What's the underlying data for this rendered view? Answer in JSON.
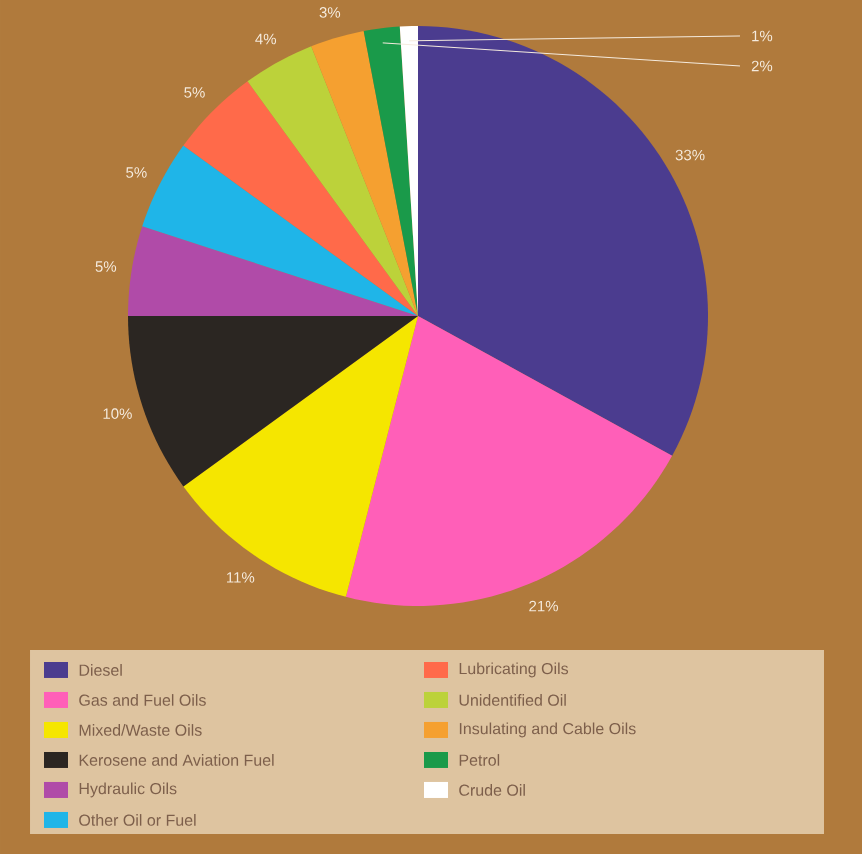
{
  "chart_data": {
    "type": "pie",
    "legend": "bottom",
    "data_labels": true,
    "categories": [
      "Diesel",
      "Gas and Fuel Oils",
      "Mixed/Waste Oils",
      "Kerosene and Aviation Fuel",
      "Hydraulic Oils",
      "Other Oil or Fuel",
      "Lubricating Oils",
      "Unidentified Oil",
      "Insulating and Cable Oils",
      "Petrol",
      "Crude Oil"
    ],
    "values": [
      33,
      21,
      11,
      10,
      5,
      5,
      5,
      4,
      3,
      2,
      1
    ],
    "value_labels": [
      "33%",
      "21%",
      "11%",
      "10%",
      "5%",
      "5%",
      "5%",
      "4%",
      "3%",
      "2%",
      "1%"
    ],
    "colors": [
      "#4b3c8f",
      "#ff5fb8",
      "#f5e600",
      "#2b2622",
      "#b04ba8",
      "#1fb5e8",
      "#ff6a4a",
      "#bcd23a",
      "#f5a030",
      "#1a9a4a",
      "#ffffff"
    ]
  }
}
